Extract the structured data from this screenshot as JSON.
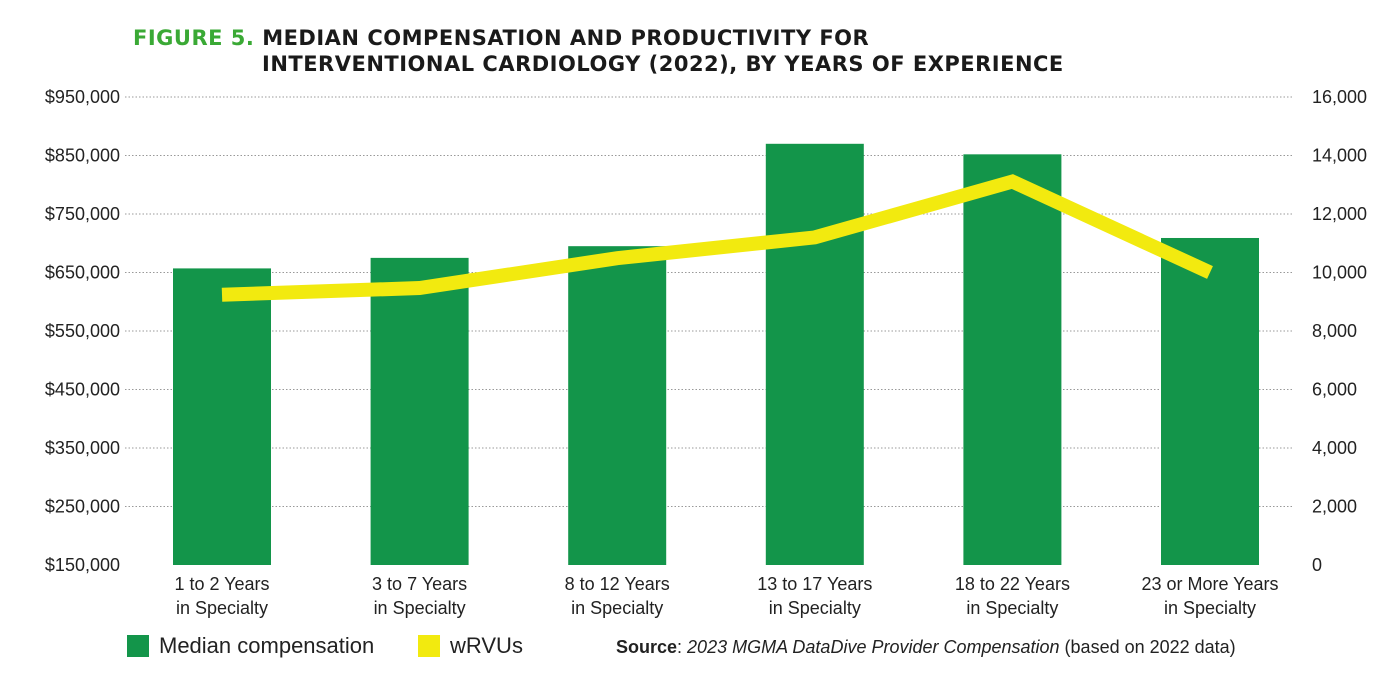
{
  "title": {
    "figure_label": "FIGURE 5.",
    "line1": "MEDIAN COMPENSATION AND PRODUCTIVITY FOR",
    "line2": "INTERVENTIONAL CARDIOLOGY (2022), BY YEARS OF EXPERIENCE"
  },
  "colors": {
    "bar": "#13954a",
    "line": "#f2ea0f",
    "title_accent": "#3aa935"
  },
  "chart_data": {
    "type": "bar",
    "categories": [
      [
        "1 to 2 Years",
        "in Specialty"
      ],
      [
        "3 to 7 Years",
        "in Specialty"
      ],
      [
        "8 to 12 Years",
        "in Specialty"
      ],
      [
        "13 to 17 Years",
        "in Specialty"
      ],
      [
        "18 to 22 Years",
        "in Specialty"
      ],
      [
        "23 or More Years",
        "in Specialty"
      ]
    ],
    "series": [
      {
        "name": "Median compensation",
        "type": "bar",
        "axis": "left",
        "values": [
          657000,
          675000,
          695000,
          870000,
          852000,
          709000
        ]
      },
      {
        "name": "wRVUs",
        "type": "line",
        "axis": "right",
        "values": [
          9240,
          9470,
          10490,
          11200,
          13110,
          10000
        ]
      }
    ],
    "left_axis": {
      "ylim": [
        150000,
        950000
      ],
      "ticks": [
        "$150,000",
        "$250,000",
        "$350,000",
        "$450,000",
        "$550,000",
        "$650,000",
        "$750,000",
        "$850,000",
        "$950,000"
      ]
    },
    "right_axis": {
      "ylim": [
        0,
        16000
      ],
      "ticks": [
        "0",
        "2,000",
        "4,000",
        "6,000",
        "8,000",
        "10,000",
        "12,000",
        "14,000",
        "16,000"
      ]
    },
    "grid": true,
    "legend": "bottom-left"
  },
  "source": {
    "label": "Source",
    "italic": "2023 MGMA DataDive Provider Compensation",
    "rest": " (based on 2022 data)"
  }
}
